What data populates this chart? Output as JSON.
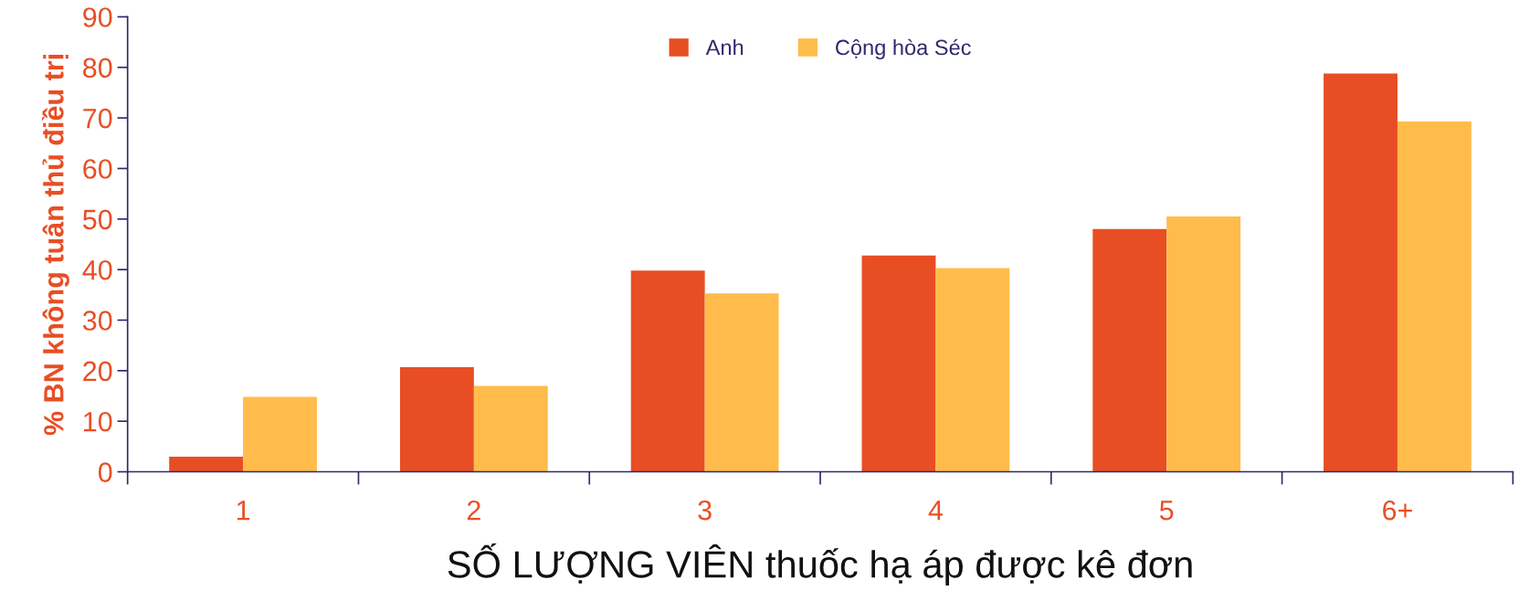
{
  "chart_data": {
    "type": "bar",
    "xlabel": "SỐ LƯỢNG VIÊN thuốc hạ áp được kê đơn",
    "ylabel": "% BN không tuân thủ điều trị",
    "categories": [
      "1",
      "2",
      "3",
      "4",
      "5",
      "6+"
    ],
    "series": [
      {
        "name": "Anh",
        "color": "#e84e24",
        "values": [
          3,
          20.7,
          39.8,
          42.8,
          48,
          78.8
        ]
      },
      {
        "name": "Cộng hòa Séc",
        "color": "#ffbc4a",
        "values": [
          14.8,
          17,
          35.3,
          40.3,
          50.5,
          69.3
        ]
      }
    ],
    "ylim": [
      0,
      90
    ],
    "yticks": [
      0,
      10,
      20,
      30,
      40,
      50,
      60,
      70,
      80,
      90
    ],
    "grid": false,
    "legend": "top"
  }
}
